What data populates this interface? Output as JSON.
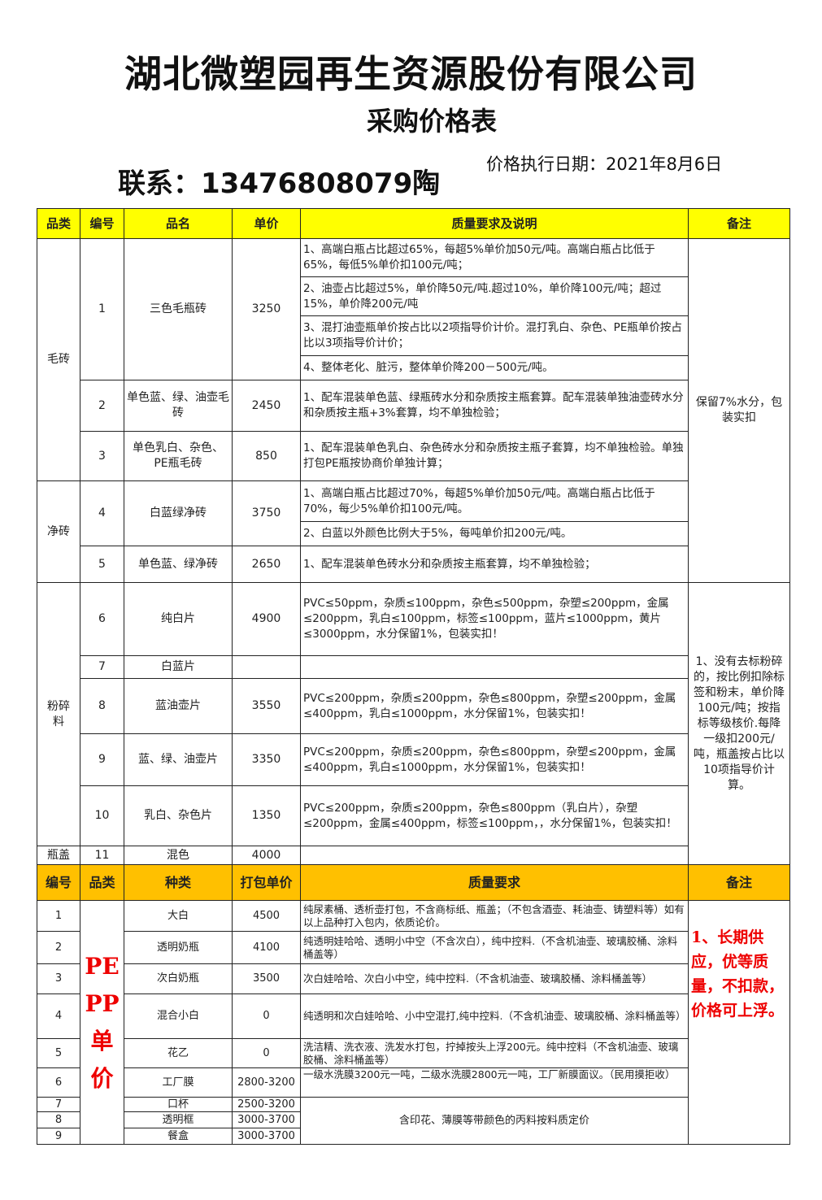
{
  "header": {
    "company": "湖北微塑园再生资源股份有限公司",
    "subtitle": "采购价格表",
    "contact": "联系：13476808079陶",
    "date": "价格执行日期：2021年8月6日"
  },
  "table1": {
    "headers": [
      "品类",
      "编号",
      "品名",
      "单价",
      "质量要求及说明",
      "备注"
    ],
    "categories": [
      "毛砖",
      "净砖",
      "粉碎料",
      "瓶盖"
    ],
    "rows": [
      {
        "no": "1",
        "name": "三色毛瓶砖",
        "price": "3250",
        "desc": [
          "1、高端白瓶占比超过65%，每超5%单价加50元/吨。高端白瓶占比低于65%，每低5%单价扣100元/吨；",
          "2、油壶占比超过5%，单价降50元/吨.超过10%，单价降100元/吨；超过15%，单价降200元/吨",
          "3、混打油壶瓶单价按占比以2项指导价计价。混打乳白、杂色、PE瓶单价按占比以3项指导价计价；",
          "4、整体老化、脏污，整体单价降200－500元/吨。"
        ]
      },
      {
        "no": "2",
        "name": "单色蓝、绿、油壶毛砖",
        "price": "2450",
        "desc": [
          "1、配车混装单色蓝、绿瓶砖水分和杂质按主瓶套算。配车混装单独油壶砖水分和杂质按主瓶+3%套算，均不单独检验；"
        ]
      },
      {
        "no": "3",
        "name": "单色乳白、杂色、PE瓶毛砖",
        "price": "850",
        "desc": [
          "1、配车混装单色乳白、杂色砖水分和杂质按主瓶子套算，均不单独检验。单独打包PE瓶按协商价单独计算；"
        ]
      },
      {
        "no": "4",
        "name": "白蓝绿净砖",
        "price": "3750",
        "desc": [
          "1、高端白瓶占比超过70%，每超5%单价加50元/吨。高端白瓶占比低于70%，每少5%单价扣100元/吨。",
          "2、白蓝以外颜色比例大于5%，每吨单价扣200元/吨。"
        ]
      },
      {
        "no": "5",
        "name": "单色蓝、绿净砖",
        "price": "2650",
        "desc": [
          "1、配车混装单色砖水分和杂质按主瓶套算，均不单独检验；"
        ]
      },
      {
        "no": "6",
        "name": "纯白片",
        "price": "4900",
        "desc": [
          "PVC≤50ppm，杂质≤100ppm，杂色≤500ppm，杂塑≤200ppm，金属≤200ppm，乳白≤100ppm，标签≤100ppm，蓝片≤1000ppm，黄片≤3000ppm，水分保留1%，包装实扣！"
        ]
      },
      {
        "no": "7",
        "name": "白蓝片",
        "price": "",
        "desc": [
          ""
        ]
      },
      {
        "no": "8",
        "name": "蓝油壶片",
        "price": "3550",
        "desc": [
          "PVC≤200ppm，杂质≤200ppm，杂色≤800ppm，杂塑≤200ppm，金属≤400ppm，乳白≤1000ppm，水分保留1%，包装实扣！"
        ]
      },
      {
        "no": "9",
        "name": "蓝、绿、油壶片",
        "price": "3350",
        "desc": [
          "PVC≤200ppm，杂质≤200ppm，杂色≤800ppm，杂塑≤200ppm，金属≤400ppm，乳白≤1000ppm，水分保留1%，包装实扣！"
        ]
      },
      {
        "no": "10",
        "name": "乳白、杂色片",
        "price": "1350",
        "desc": [
          "PVC≤200ppm，杂质≤200ppm，杂色≤800ppm（乳白片），杂塑≤200ppm，金属≤400ppm，标签≤100ppm，，水分保留1%，包装实扣！"
        ]
      },
      {
        "no": "11",
        "name": "混色",
        "price": "4000",
        "desc": [
          ""
        ]
      }
    ],
    "remarks": [
      "保留7%水分，包装实扣",
      "1、没有去标粉碎的，按比例扣除标签和粉末，单价降100元/吨；按指标等级核价.每降一级扣200元/吨，瓶盖按占比以10项指导价计算。"
    ]
  },
  "table2": {
    "headers": [
      "编号",
      "品类",
      "种类",
      "打包单价",
      "质量要求",
      "备注"
    ],
    "category": "PE PP 单价",
    "rows": [
      {
        "no": "1",
        "name": "大白",
        "price": "4500",
        "desc": "纯尿素桶、透析壶打包，不含商标纸、瓶盖；（不包含酒壶、耗油壶、铸塑料等）如有以上品种打入包内，依质论价。"
      },
      {
        "no": "2",
        "name": "透明奶瓶",
        "price": "4100",
        "desc": "纯透明娃哈哈、透明小中空（不含次白），纯中控料.（不含机油壶、玻璃胶桶、涂料桶盖等）"
      },
      {
        "no": "3",
        "name": "次白奶瓶",
        "price": "3500",
        "desc": "次白娃哈哈、次白小中空，纯中控料.（不含机油壶、玻璃胶桶、涂料桶盖等）"
      },
      {
        "no": "4",
        "name": "混合小白",
        "price": "0",
        "desc": "纯透明和次白娃哈哈、小中空混打,纯中控料.（不含机油壶、玻璃胶桶、涂料桶盖等）"
      },
      {
        "no": "5",
        "name": "花乙",
        "price": "0",
        "desc": "洗洁精、洗衣液、洗发水打包，拧掉按头上浮200元。纯中控料（不含机油壶、玻璃胶桶、涂料桶盖等）"
      },
      {
        "no": "6",
        "name": "工厂膜",
        "price": "2800-3200",
        "desc": "一级水洗膜3200元一吨，二级水洗膜2800元一吨，工厂新膜面议。（民用摸拒收）"
      },
      {
        "no": "7",
        "name": "口杯",
        "price": "2500-3200"
      },
      {
        "no": "8",
        "name": "透明框",
        "price": "3000-3700"
      },
      {
        "no": "9",
        "name": "餐盒",
        "price": "3000-3700"
      }
    ],
    "shared_desc": "含印花、薄膜等带颜色的丙料按料质定价",
    "remark": "1、长期供应，优等质量，不扣款，价格可上浮。"
  },
  "colors": {
    "header_yellow": "#ffff00",
    "header_orange": "#ffc000",
    "remark_red": "#ee0000"
  }
}
